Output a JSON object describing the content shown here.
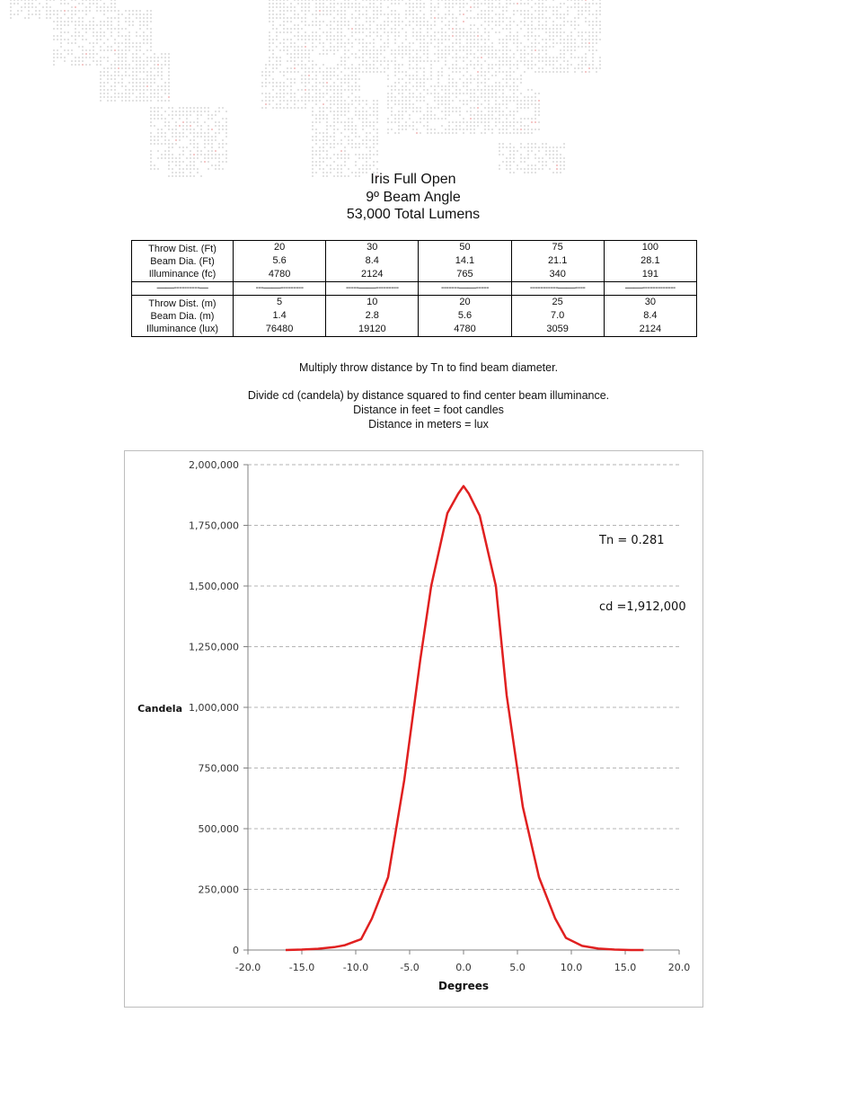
{
  "title": {
    "line1": "Iris Full Open",
    "line2": "9º Beam Angle",
    "line3": "53,000 Total Lumens"
  },
  "table": {
    "imperial": {
      "labels": [
        "Throw Dist. (Ft)",
        "Beam Dia. (Ft)",
        "Illuminance (fc)"
      ],
      "columns": [
        [
          "20",
          "5.6",
          "4780"
        ],
        [
          "30",
          "8.4",
          "2124"
        ],
        [
          "50",
          "14.1",
          "765"
        ],
        [
          "75",
          "21.1",
          "340"
        ],
        [
          "100",
          "28.1",
          "191"
        ]
      ]
    },
    "separator": [
      "——----------—",
      "---——---------",
      "-----——---------",
      "-------——-----",
      "-----------——----",
      "——-------------"
    ],
    "metric": {
      "labels": [
        "Throw Dist. (m)",
        "Beam Dia. (m)",
        "Illuminance (lux)"
      ],
      "columns": [
        [
          "5",
          "1.4",
          "76480"
        ],
        [
          "10",
          "2.8",
          "19120"
        ],
        [
          "20",
          "5.6",
          "4780"
        ],
        [
          "25",
          "7.0",
          "3059"
        ],
        [
          "30",
          "8.4",
          "2124"
        ]
      ]
    }
  },
  "notes": {
    "line1": "Multiply throw distance by Tn to find beam diameter.",
    "line2": "Divide cd (candela) by distance squared to find center beam illuminance.",
    "line3": "Distance in feet = foot candles",
    "line4": "Distance in meters = lux"
  },
  "chart_data": {
    "type": "line",
    "title": "",
    "xlabel": "Degrees",
    "ylabel": "Candela",
    "xlim": [
      -20,
      20
    ],
    "ylim": [
      0,
      2000000
    ],
    "xticks": [
      -20,
      -15,
      -10,
      -5,
      0,
      5,
      10,
      15,
      20
    ],
    "xtick_labels": [
      "-20.0",
      "-15.0",
      "-10.0",
      "-5.0",
      "0.0",
      "5.0",
      "10.0",
      "15.0",
      "20.0"
    ],
    "yticks": [
      0,
      250000,
      500000,
      750000,
      1000000,
      1250000,
      1500000,
      1750000,
      2000000
    ],
    "ytick_labels": [
      "0",
      "250,000",
      "500,000",
      "750,000",
      "1,000,000",
      "1,250,000",
      "1,500,000",
      "1,750,000",
      "2,000,000"
    ],
    "grid": "horizontal-dashed",
    "series": [
      {
        "name": "Candela",
        "color": "#e02020",
        "x": [
          -16.5,
          -15.0,
          -13.5,
          -12.0,
          -11.0,
          -9.5,
          -8.5,
          -7.0,
          -5.5,
          -4.0,
          -3.0,
          -1.5,
          -0.5,
          0.0,
          0.5,
          1.5,
          3.0,
          4.0,
          5.5,
          7.0,
          8.5,
          9.5,
          11.0,
          12.5,
          14.0,
          15.5,
          16.7
        ],
        "values": [
          0,
          2000,
          5000,
          12000,
          20000,
          45000,
          130000,
          300000,
          700000,
          1200000,
          1500000,
          1800000,
          1880000,
          1912000,
          1880000,
          1790000,
          1500000,
          1050000,
          590000,
          300000,
          130000,
          50000,
          17000,
          6000,
          2000,
          0,
          0
        ]
      }
    ],
    "annotations": [
      {
        "text": "Tn = 0.281"
      },
      {
        "text": "cd =1,912,000"
      }
    ]
  }
}
